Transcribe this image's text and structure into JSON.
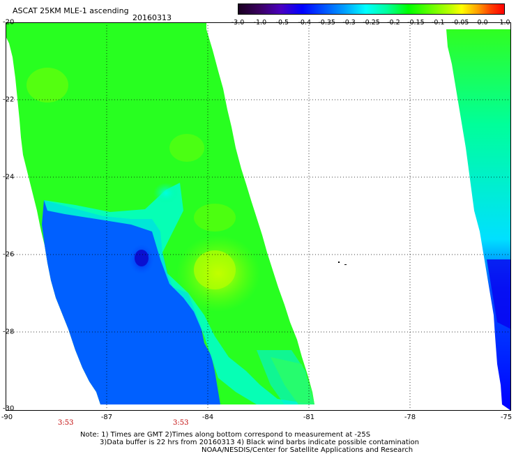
{
  "header": {
    "title": "ASCAT 25KM MLE-1 ascending",
    "date": "20160313"
  },
  "colorbar": {
    "labels": [
      "-3.0",
      "-1.0",
      "-0.5",
      "-0.4",
      "-0.35",
      "-0.3",
      "-0.25",
      "-0.2",
      "-0.15",
      "-0.1",
      "-0.05",
      "0.0",
      "1.0"
    ],
    "colors": [
      "#1a0020",
      "#3a0060",
      "#4a00c0",
      "#0000ff",
      "#0050ff",
      "#00a0ff",
      "#00ffff",
      "#00ff9c",
      "#00ff00",
      "#60ff00",
      "#c0ff00",
      "#ffff00",
      "#ffa000",
      "#ff4000",
      "#ff0000"
    ]
  },
  "axes": {
    "lat_labels": [
      "-20",
      "-22",
      "-24",
      "-26",
      "-28",
      "-30"
    ],
    "lon_labels": [
      "-90",
      "-87",
      "-84",
      "-81",
      "-78",
      "-75"
    ]
  },
  "times": [
    "3:53",
    "3:53"
  ],
  "notes": {
    "line1": "Note: 1) Times are GMT 2)Times along bottom correspond to measurement at -25S",
    "line2": "3)Data buffer is 22 hrs from 20160313 4) Black wind barbs indicate possible contamination",
    "line3": "NOAA/NESDIS/Center for Satellite Applications and Research"
  }
}
